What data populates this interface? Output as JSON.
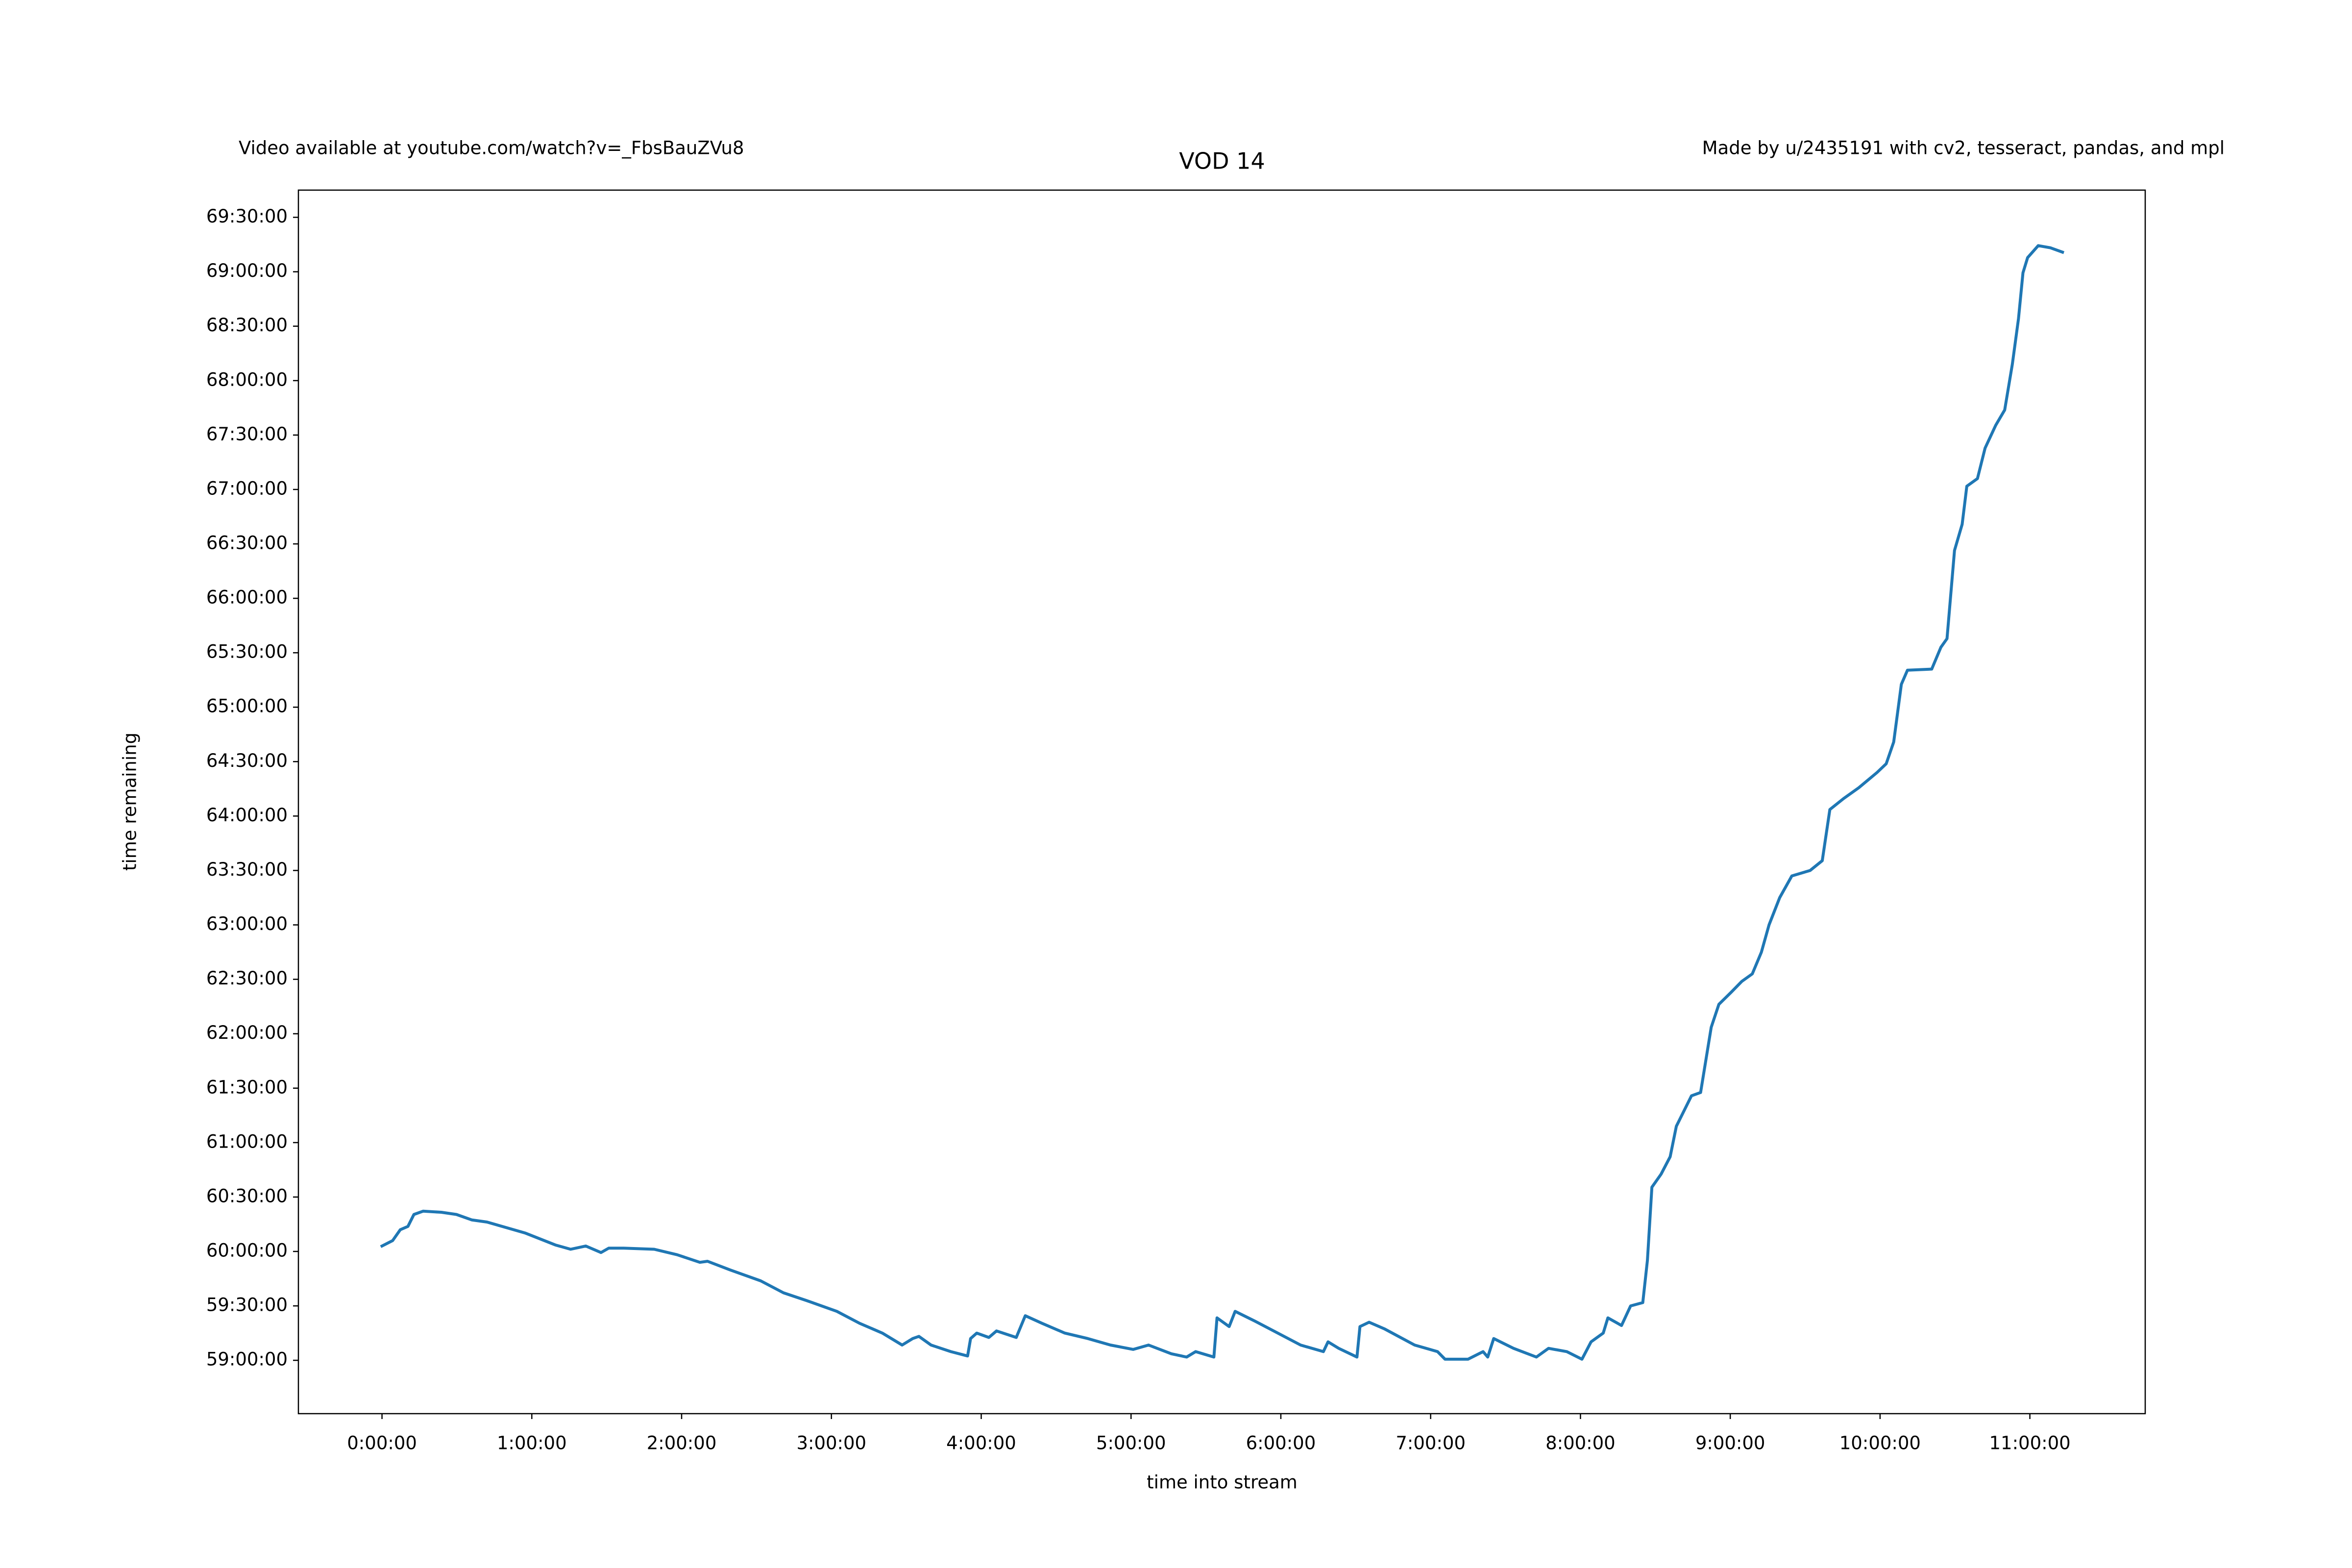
{
  "chart_data": {
    "type": "line",
    "title": "VOD 14",
    "annotations": [
      "Video available at youtube.com/watch?v=_FbsBauZVu8",
      "Made by u/2435191 with cv2, tesseract, pandas, and mpl"
    ],
    "xlabel": "time into stream",
    "ylabel": "time remaining",
    "color": "#1f77b4",
    "x": [
      0,
      0.071,
      0.122,
      0.173,
      0.213,
      0.274,
      0.396,
      0.497,
      0.599,
      0.701,
      0.802,
      0.954,
      1.157,
      1.259,
      1.36,
      1.462,
      1.513,
      1.614,
      1.817,
      1.97,
      2.122,
      2.173,
      2.325,
      2.528,
      2.68,
      2.832,
      3.036,
      3.188,
      3.34,
      3.472,
      3.543,
      3.584,
      3.665,
      3.797,
      3.909,
      3.929,
      3.97,
      4.051,
      4.102,
      4.234,
      4.294,
      4.406,
      4.558,
      4.711,
      4.863,
      5.015,
      5.117,
      5.269,
      5.371,
      5.431,
      5.553,
      5.574,
      5.655,
      5.695,
      5.827,
      5.98,
      6.132,
      6.284,
      6.315,
      6.386,
      6.508,
      6.528,
      6.589,
      6.69,
      6.893,
      7.046,
      7.096,
      7.249,
      7.35,
      7.381,
      7.421,
      7.553,
      7.706,
      7.787,
      7.909,
      8.01,
      8.071,
      8.152,
      8.183,
      8.274,
      8.335,
      8.416,
      8.447,
      8.477,
      8.538,
      8.599,
      8.64,
      8.741,
      8.802,
      8.873,
      8.924,
      9.005,
      9.076,
      9.147,
      9.208,
      9.259,
      9.33,
      9.411,
      9.533,
      9.614,
      9.665,
      9.756,
      9.858,
      9.98,
      10.041,
      10.091,
      10.142,
      10.183,
      10.345,
      10.406,
      10.447,
      10.497,
      10.548,
      10.579,
      10.65,
      10.701,
      10.772,
      10.832,
      10.883,
      10.924,
      10.954,
      10.985,
      11.056,
      11.137,
      11.218
    ],
    "values": [
      60.05,
      60.1,
      60.2,
      60.23,
      60.34,
      60.37,
      60.36,
      60.34,
      60.29,
      60.27,
      60.23,
      60.17,
      60.06,
      60.02,
      60.05,
      59.99,
      60.03,
      60.03,
      60.02,
      59.97,
      59.9,
      59.91,
      59.83,
      59.73,
      59.62,
      59.55,
      59.45,
      59.34,
      59.25,
      59.14,
      59.2,
      59.22,
      59.14,
      59.08,
      59.04,
      59.2,
      59.25,
      59.21,
      59.27,
      59.21,
      59.41,
      59.34,
      59.25,
      59.2,
      59.14,
      59.1,
      59.14,
      59.06,
      59.03,
      59.08,
      59.03,
      59.39,
      59.31,
      59.45,
      59.36,
      59.25,
      59.14,
      59.08,
      59.17,
      59.11,
      59.03,
      59.31,
      59.35,
      59.29,
      59.14,
      59.08,
      59.01,
      59.01,
      59.08,
      59.03,
      59.2,
      59.11,
      59.03,
      59.11,
      59.08,
      59.01,
      59.17,
      59.25,
      59.39,
      59.32,
      59.5,
      59.53,
      59.92,
      60.59,
      60.71,
      60.87,
      61.15,
      61.43,
      61.46,
      62.06,
      62.27,
      62.38,
      62.48,
      62.55,
      62.75,
      63.0,
      63.25,
      63.45,
      63.5,
      63.59,
      64.06,
      64.16,
      64.26,
      64.4,
      64.48,
      64.68,
      65.21,
      65.34,
      65.35,
      65.55,
      65.63,
      66.44,
      66.68,
      67.03,
      67.1,
      67.38,
      67.59,
      67.73,
      68.15,
      68.57,
      68.99,
      69.13,
      69.24,
      69.22,
      69.18
    ],
    "xlim": [
      -0.558,
      11.77
    ],
    "ylim": [
      58.51,
      69.75
    ],
    "xticks": [
      {
        "value": 0,
        "label": "0:00:00"
      },
      {
        "value": 1,
        "label": "1:00:00"
      },
      {
        "value": 2,
        "label": "2:00:00"
      },
      {
        "value": 3,
        "label": "3:00:00"
      },
      {
        "value": 4,
        "label": "4:00:00"
      },
      {
        "value": 5,
        "label": "5:00:00"
      },
      {
        "value": 6,
        "label": "6:00:00"
      },
      {
        "value": 7,
        "label": "7:00:00"
      },
      {
        "value": 8,
        "label": "8:00:00"
      },
      {
        "value": 9,
        "label": "9:00:00"
      },
      {
        "value": 10,
        "label": "10:00:00"
      },
      {
        "value": 11,
        "label": "11:00:00"
      }
    ],
    "yticks": [
      {
        "value": 59,
        "label": "59:00:00"
      },
      {
        "value": 59.5,
        "label": "59:30:00"
      },
      {
        "value": 60,
        "label": "60:00:00"
      },
      {
        "value": 60.5,
        "label": "60:30:00"
      },
      {
        "value": 61,
        "label": "61:00:00"
      },
      {
        "value": 61.5,
        "label": "61:30:00"
      },
      {
        "value": 62,
        "label": "62:00:00"
      },
      {
        "value": 62.5,
        "label": "62:30:00"
      },
      {
        "value": 63,
        "label": "63:00:00"
      },
      {
        "value": 63.5,
        "label": "63:30:00"
      },
      {
        "value": 64,
        "label": "64:00:00"
      },
      {
        "value": 64.5,
        "label": "64:30:00"
      },
      {
        "value": 65,
        "label": "65:00:00"
      },
      {
        "value": 65.5,
        "label": "65:30:00"
      },
      {
        "value": 66,
        "label": "66:00:00"
      },
      {
        "value": 66.5,
        "label": "66:30:00"
      },
      {
        "value": 67,
        "label": "67:00:00"
      },
      {
        "value": 67.5,
        "label": "67:30:00"
      },
      {
        "value": 68,
        "label": "68:00:00"
      },
      {
        "value": 68.5,
        "label": "68:30:00"
      },
      {
        "value": 69,
        "label": "69:00:00"
      },
      {
        "value": 69.5,
        "label": "69:30:00"
      }
    ]
  }
}
